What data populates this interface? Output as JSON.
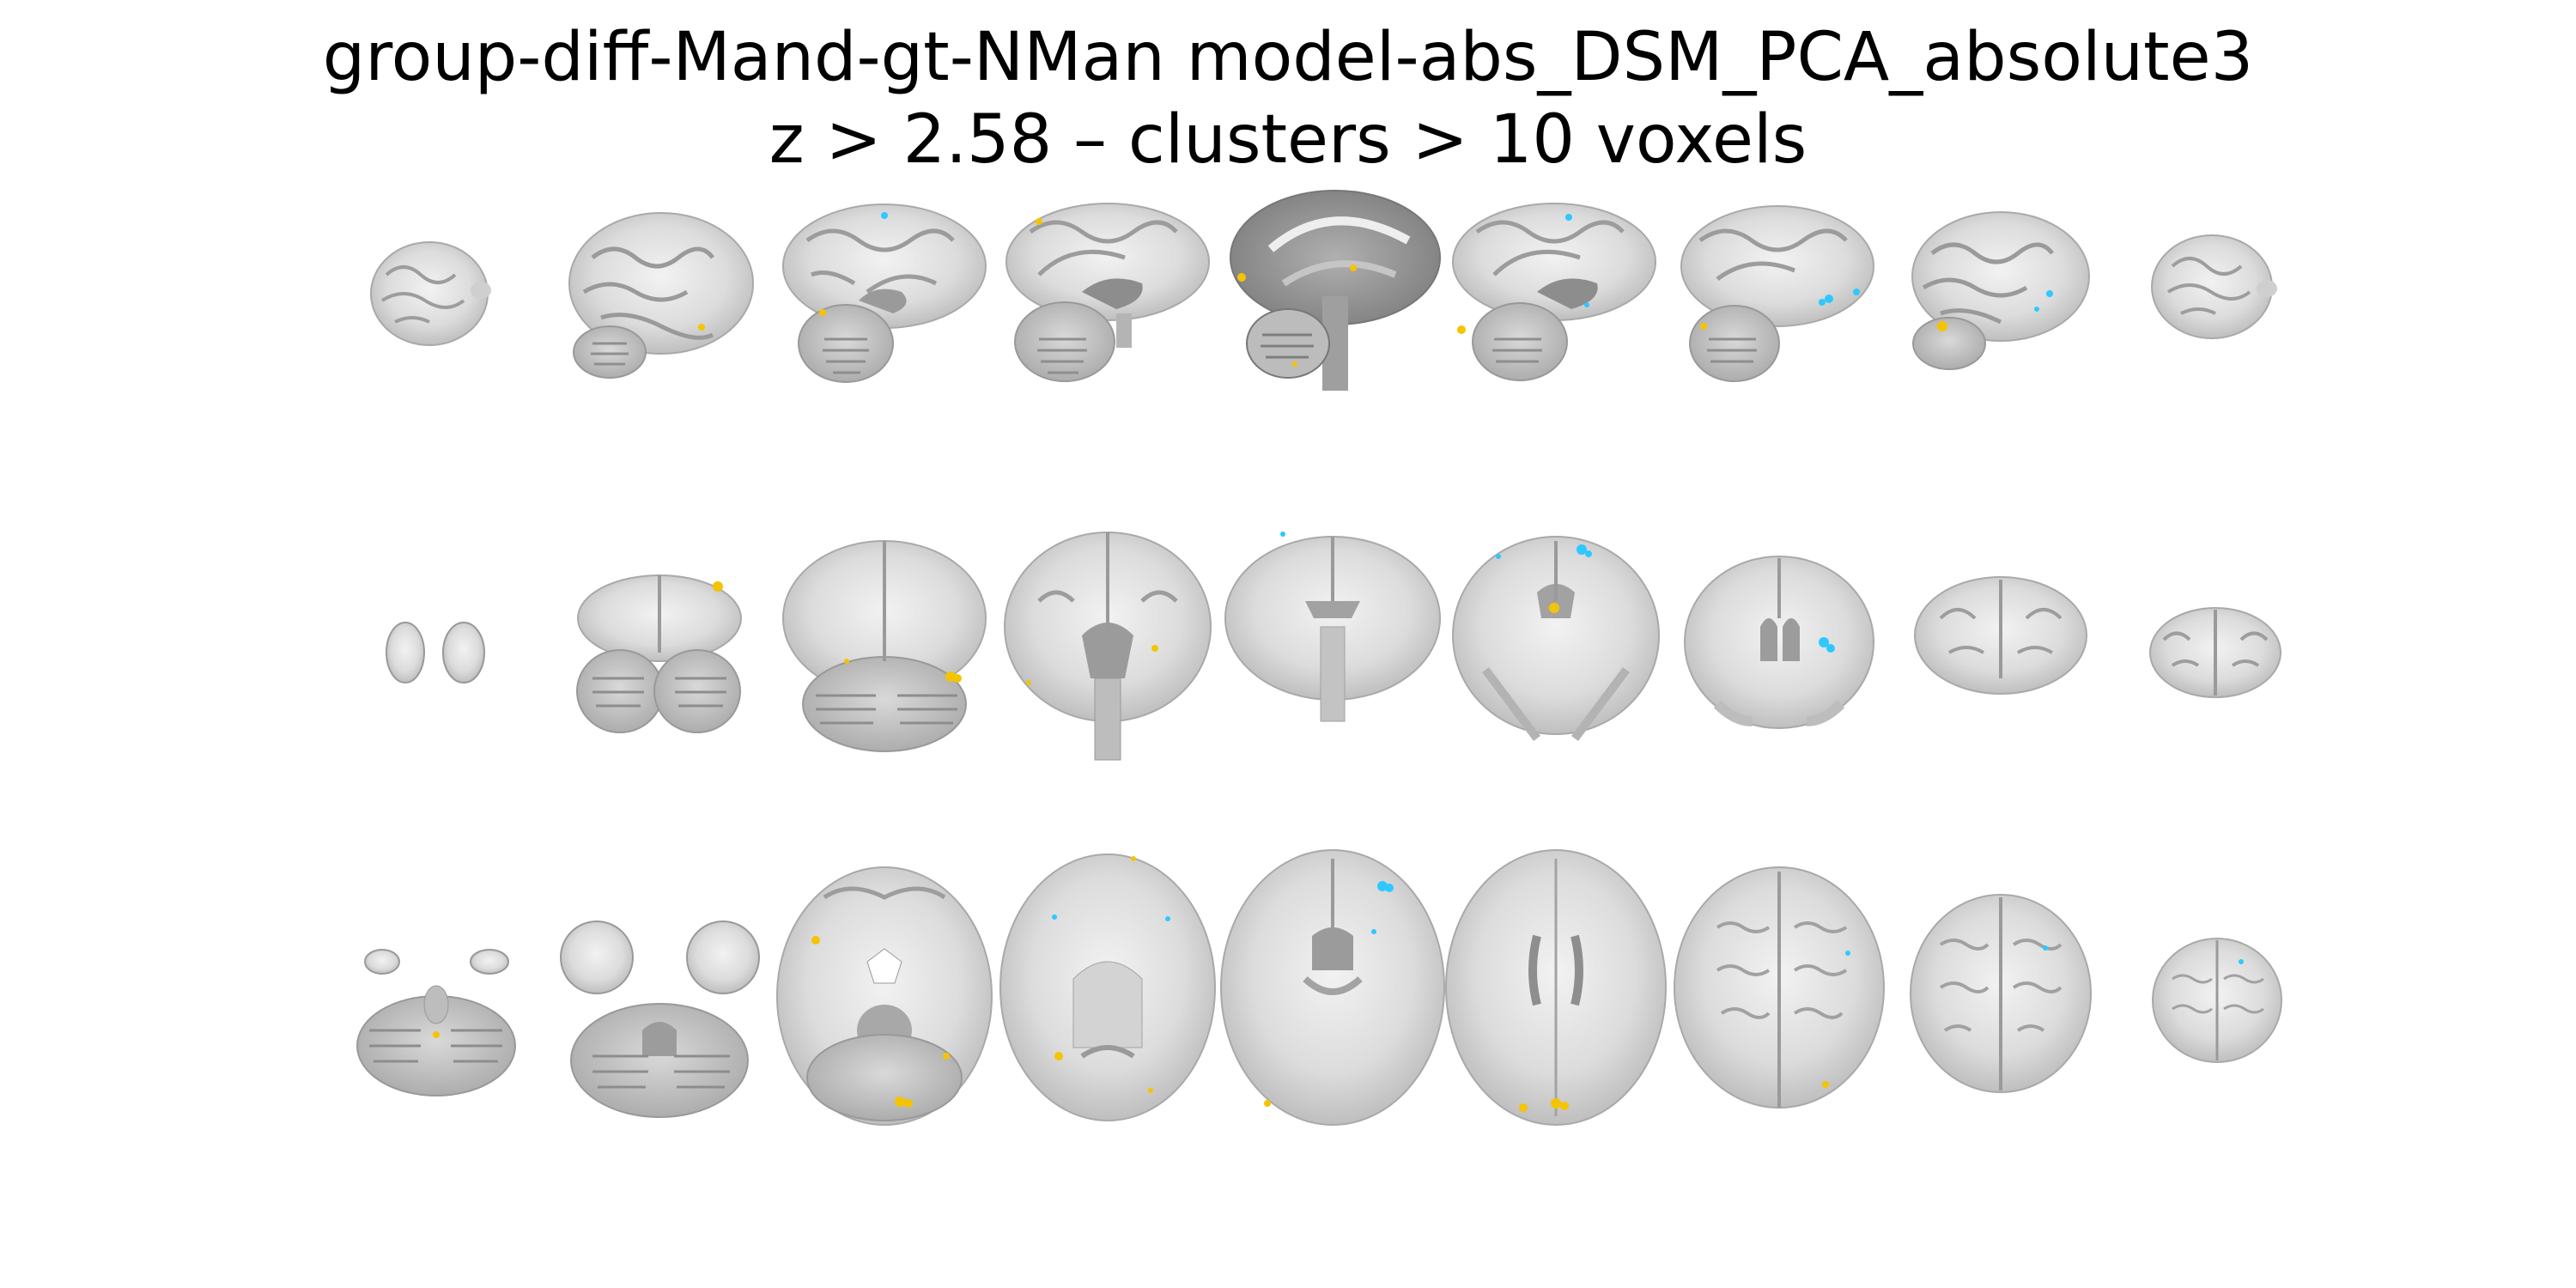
{
  "figure": {
    "title_line1": "group-diff-Mand-gt-NMan model-abs_DSM_PCA_absolute3",
    "title_line2": "z > 2.58 – clusters > 10 voxels"
  },
  "rows": [
    {
      "name": "sagittal",
      "count": 9
    },
    {
      "name": "coronal",
      "count": 9
    },
    {
      "name": "axial",
      "count": 9
    }
  ],
  "colors": {
    "positive": "#f5c400",
    "negative": "#2ec8ff",
    "brain_light": "#dedede",
    "brain_dark": "#8f8f8f",
    "background": "#ffffff"
  }
}
